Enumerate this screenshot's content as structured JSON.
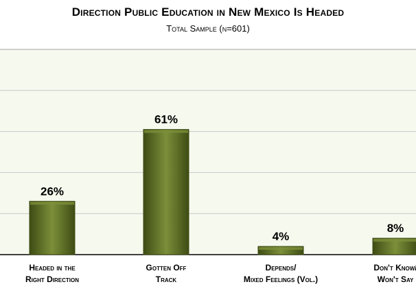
{
  "chart_data": {
    "type": "bar",
    "title": "Direction Public Education in New Mexico Is Headed",
    "subtitle": "Total Sample (n=601)",
    "categories": [
      [
        "Headed in the",
        "Right Direction"
      ],
      [
        "Gotten Off",
        "Track"
      ],
      [
        "Depends/",
        "Mixed Feelings (Vol.)"
      ],
      [
        "Don't Know/",
        "Won't Say"
      ]
    ],
    "values": [
      26,
      61,
      4,
      8
    ],
    "value_labels": [
      "26%",
      "61%",
      "4%",
      "8%"
    ],
    "ylim": [
      0,
      100
    ],
    "grid": true,
    "legend": "none",
    "colors": {
      "bar": "#5b6e22",
      "bar_dark": "#3e4c14",
      "bar_light": "#7c8f3a",
      "plot_bg": "#f6f9ee",
      "grid": "#c8c8c8"
    }
  }
}
